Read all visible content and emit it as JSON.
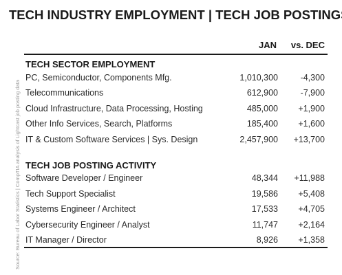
{
  "title": "TECH INDUSTRY EMPLOYMENT | TECH JOB POSTINGS",
  "source": "Source: Bureau of Labor Statistics | CompTIA analysis of Lightcast job posting data",
  "columns": {
    "jan": "JAN",
    "vs_dec": "vs. DEC"
  },
  "sector": {
    "title": "TECH SECTOR EMPLOYMENT",
    "rows": [
      {
        "label": "PC, Semiconductor, Components Mfg.",
        "jan": "1,010,300",
        "change": "-4,300"
      },
      {
        "label": "Telecommunications",
        "jan": "612,900",
        "change": "-7,900"
      },
      {
        "label": "Cloud Infrastructure, Data Processing, Hosting",
        "jan": "485,000",
        "change": "+1,900"
      },
      {
        "label": "Other Info Services, Search, Platforms",
        "jan": "185,400",
        "change": "+1,600"
      },
      {
        "label": "IT & Custom Software Services | Sys. Design",
        "jan": "2,457,900",
        "change": "+13,700"
      }
    ]
  },
  "postings": {
    "title": "TECH JOB POSTING ACTIVITY",
    "rows": [
      {
        "label": "Software Developer / Engineer",
        "jan": "48,344",
        "change": "+11,988"
      },
      {
        "label": "Tech Support Specialist",
        "jan": "19,586",
        "change": "+5,408"
      },
      {
        "label": "Systems Engineer / Architect",
        "jan": "17,533",
        "change": "+4,705"
      },
      {
        "label": "Cybersecurity Engineer / Analyst",
        "jan": "11,747",
        "change": "+2,164"
      },
      {
        "label": "IT Manager / Director",
        "jan": "8,926",
        "change": "+1,358"
      }
    ]
  }
}
